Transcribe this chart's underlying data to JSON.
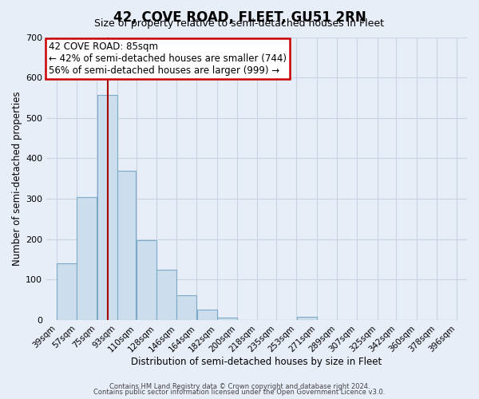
{
  "title": "42, COVE ROAD, FLEET, GU51 2RN",
  "subtitle": "Size of property relative to semi-detached houses in Fleet",
  "xlabel": "Distribution of semi-detached houses by size in Fleet",
  "ylabel": "Number of semi-detached properties",
  "footer_line1": "Contains HM Land Registry data © Crown copyright and database right 2024.",
  "footer_line2": "Contains public sector information licensed under the Open Government Licence v3.0.",
  "bin_edges": [
    39,
    57,
    75,
    93,
    110,
    128,
    146,
    164,
    182,
    200,
    218,
    235,
    253,
    271,
    289,
    307,
    325,
    342,
    360,
    378,
    396
  ],
  "bin_labels": [
    "39sqm",
    "57sqm",
    "75sqm",
    "93sqm",
    "110sqm",
    "128sqm",
    "146sqm",
    "164sqm",
    "182sqm",
    "200sqm",
    "218sqm",
    "235sqm",
    "253sqm",
    "271sqm",
    "289sqm",
    "307sqm",
    "325sqm",
    "342sqm",
    "360sqm",
    "378sqm",
    "396sqm"
  ],
  "counts": [
    140,
    305,
    557,
    370,
    198,
    125,
    62,
    25,
    7,
    0,
    0,
    0,
    8,
    0,
    0,
    0,
    0,
    0,
    0,
    0
  ],
  "bar_color": "#ccdded",
  "bar_edge_color": "#7aaac8",
  "property_line_x": 85,
  "property_line_color": "#aa0000",
  "ann_line1": "42 COVE ROAD: 85sqm",
  "ann_line2": "← 42% of semi-detached houses are smaller (744)",
  "ann_line3": "56% of semi-detached houses are larger (999) →",
  "ann_box_facecolor": "#ffffff",
  "ann_box_edgecolor": "#cc0000",
  "ylim": [
    0,
    700
  ],
  "yticks": [
    0,
    100,
    200,
    300,
    400,
    500,
    600,
    700
  ],
  "grid_color": "#c8d4e4",
  "background_color": "#e8eef8",
  "title_fontsize": 12,
  "subtitle_fontsize": 9,
  "axis_label_fontsize": 8.5,
  "tick_fontsize": 7.5,
  "ann_fontsize": 8.5,
  "footer_fontsize": 6
}
